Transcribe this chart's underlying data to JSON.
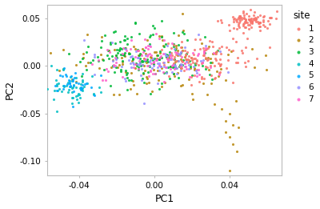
{
  "xlabel": "PC1",
  "ylabel": "PC2",
  "xlim": [
    -0.057,
    0.068
  ],
  "ylim": [
    -0.115,
    0.065
  ],
  "xticks": [
    -0.04,
    0.0,
    0.04
  ],
  "yticks": [
    -0.1,
    -0.05,
    0.0,
    0.05
  ],
  "site_colors": {
    "1": "#F8766D",
    "2": "#B8860B",
    "3": "#00BA38",
    "4": "#00BFC4",
    "5": "#00A9FF",
    "6": "#9590FF",
    "7": "#FF61CC"
  },
  "legend_title": "site",
  "background_color": "#FFFFFF",
  "marker_size": 5,
  "alpha": 0.85
}
